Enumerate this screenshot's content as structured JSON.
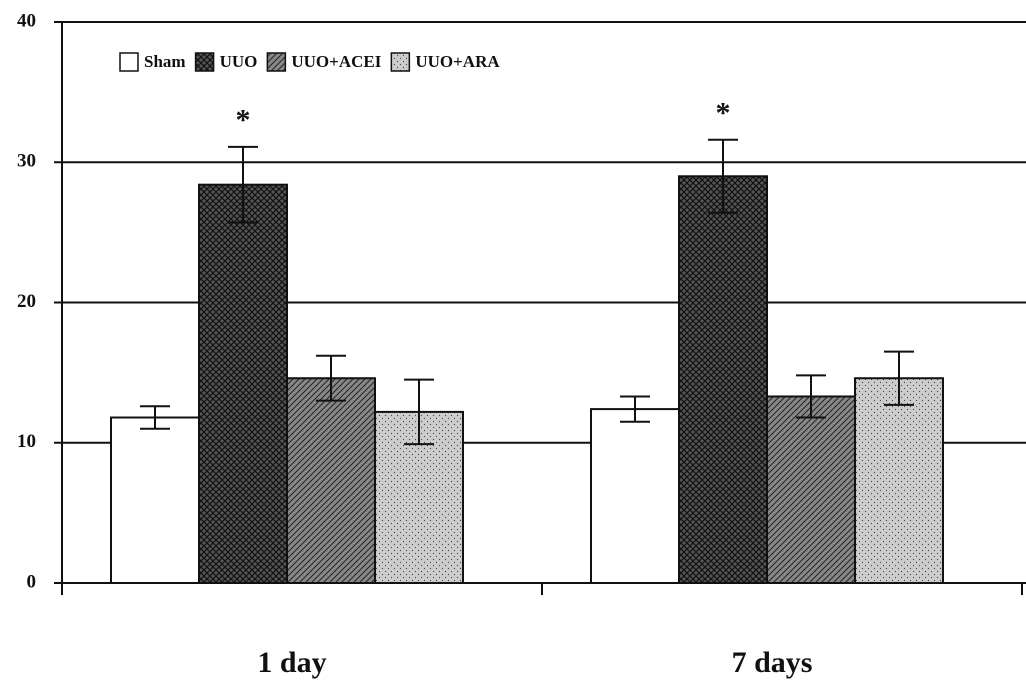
{
  "chart_data": {
    "type": "bar",
    "categories": [
      "1 day",
      "7 days"
    ],
    "series": [
      {
        "name": "Sham",
        "color": "#ffffff",
        "values": [
          11.8,
          12.4
        ],
        "errors": [
          0.8,
          0.9
        ]
      },
      {
        "name": "UUO",
        "color": "#555555",
        "values": [
          28.4,
          29.0
        ],
        "errors": [
          2.7,
          2.6
        ]
      },
      {
        "name": "UUO+ACEI",
        "color": "#888888",
        "values": [
          14.6,
          13.3
        ],
        "errors": [
          1.6,
          1.5
        ]
      },
      {
        "name": "UUO+ARA",
        "color": "#cccccc",
        "values": [
          12.2,
          14.6
        ],
        "errors": [
          2.3,
          1.9
        ]
      }
    ],
    "annotations": [
      "*",
      "*"
    ],
    "ylim": [
      0,
      40
    ],
    "yticks": [
      0,
      10,
      20,
      30,
      40
    ],
    "grid": true,
    "legend": "upper left"
  }
}
